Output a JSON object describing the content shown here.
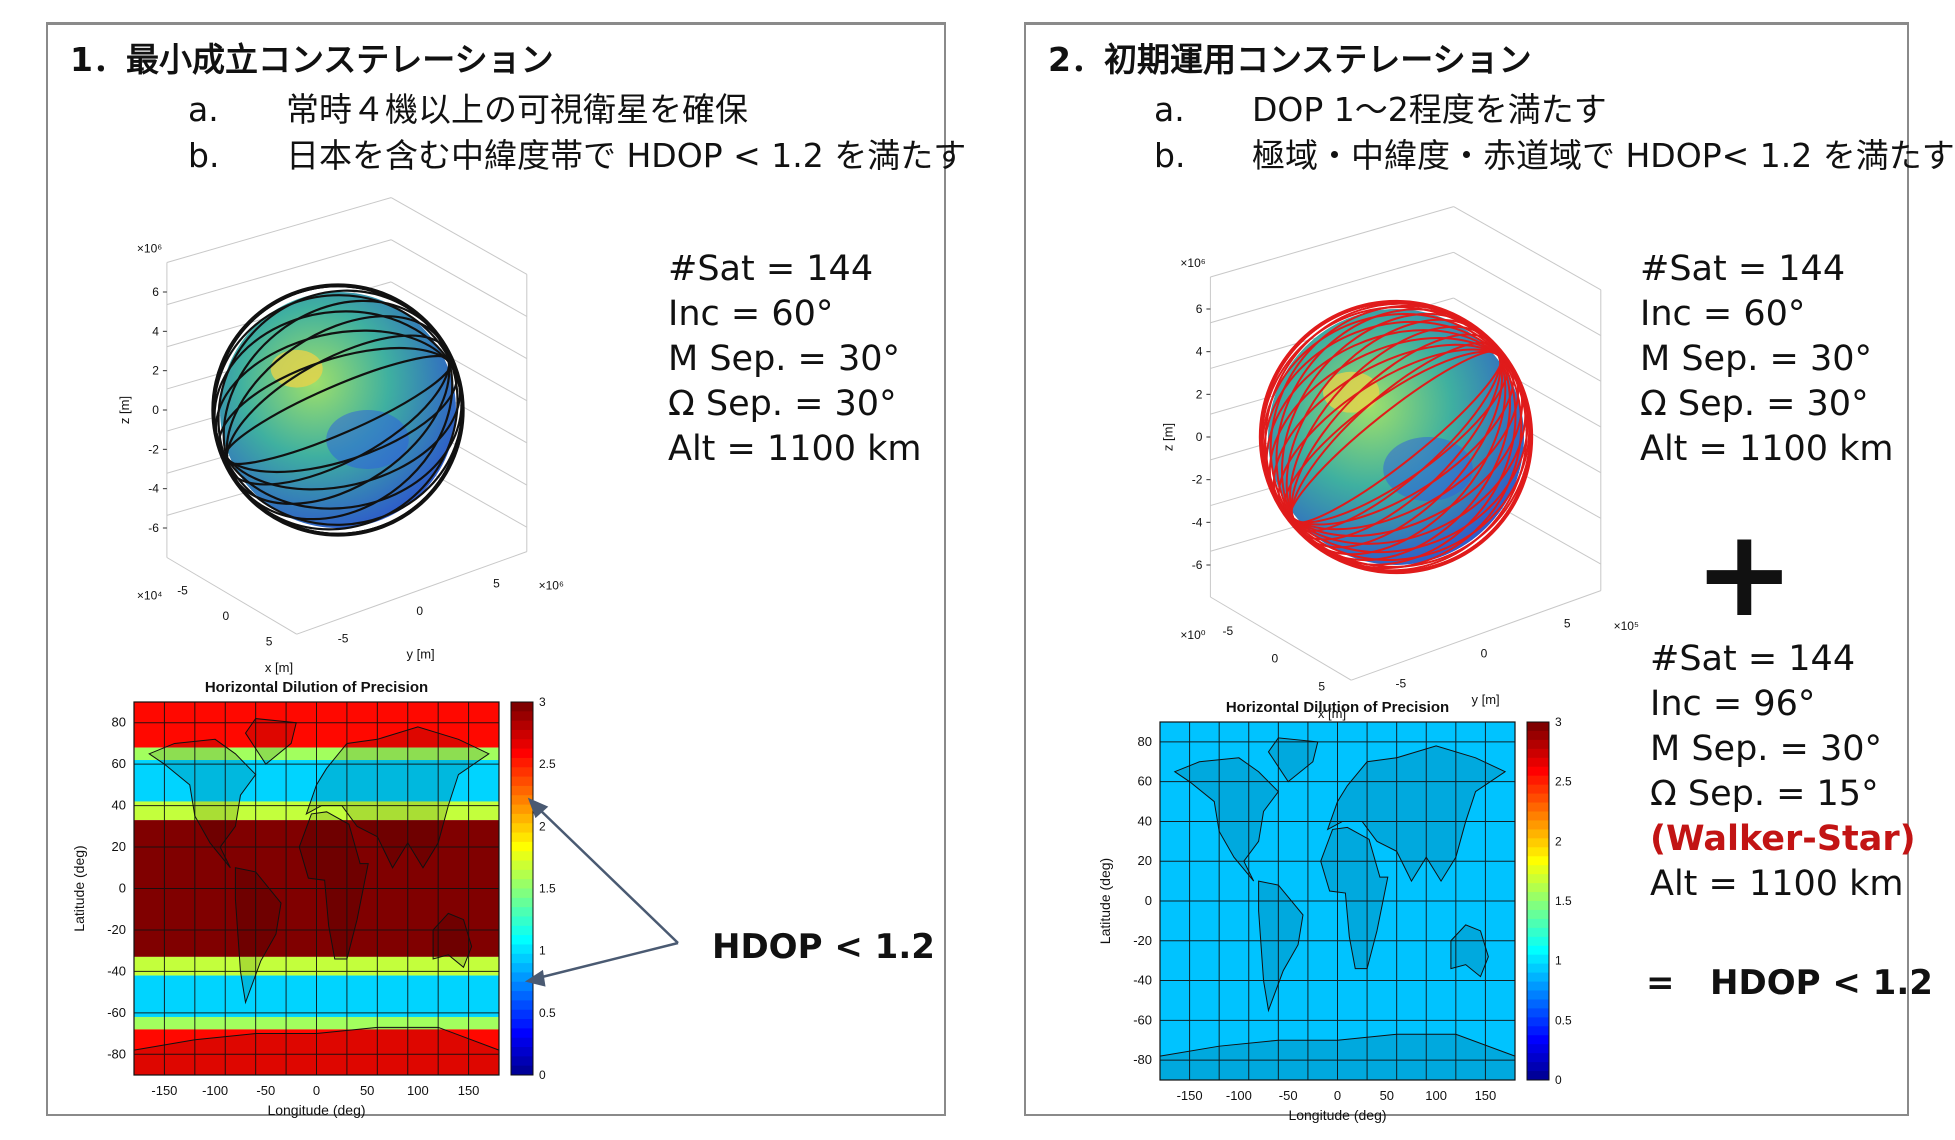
{
  "panel1": {
    "title": "1．最小成立コンステレーション",
    "req_a_label": "a.",
    "req_a_text": "常時４機以上の可視衛星を確保",
    "req_b_label": "b.",
    "req_b_text": "日本を含む中緯度帯で HDOP < 1.2 を満たす",
    "params": [
      "#Sat = 144",
      "Inc = 60°",
      "M Sep. = 30°",
      "Ω Sep. = 30°",
      "Alt = 1100 km"
    ],
    "globe": {
      "z_exp": "×10⁶",
      "x_exp": "×10⁴",
      "y_exp": "×10⁶",
      "z_ticks": [
        "6",
        "4",
        "2",
        "0",
        "-2",
        "-4",
        "-6"
      ],
      "x_ticks": [
        "-5",
        "0",
        "5"
      ],
      "y_ticks": [
        "-5",
        "0",
        "5"
      ],
      "xlabel": "x [m]",
      "ylabel": "y [m]",
      "zlabel": "z [m]",
      "orbit_color": "#111111"
    },
    "map": {
      "title": "Horizontal Dilution of Precision",
      "xlabel": "Longitude (deg)",
      "ylabel": "Latitude (deg)",
      "lat_ticks": [
        "80",
        "60",
        "40",
        "20",
        "0",
        "-20",
        "-40",
        "-60",
        "-80"
      ],
      "lon_ticks": [
        "-150",
        "-100",
        "-50",
        "0",
        "50",
        "100",
        "150"
      ],
      "cbar_ticks": [
        "3",
        "2.5",
        "2",
        "1.5",
        "1",
        "0.5",
        "0"
      ],
      "bands": [
        {
          "lat_from": 90,
          "lat_to": 68,
          "hdop": 2.6
        },
        {
          "lat_from": 68,
          "lat_to": 62,
          "hdop": 1.6
        },
        {
          "lat_from": 62,
          "lat_to": 42,
          "hdop": 1.0
        },
        {
          "lat_from": 42,
          "lat_to": 33,
          "hdop": 1.7
        },
        {
          "lat_from": 33,
          "lat_to": -33,
          "hdop": 3.0
        },
        {
          "lat_from": -33,
          "lat_to": -42,
          "hdop": 1.7
        },
        {
          "lat_from": -42,
          "lat_to": -62,
          "hdop": 1.0
        },
        {
          "lat_from": -62,
          "lat_to": -68,
          "hdop": 1.6
        },
        {
          "lat_from": -68,
          "lat_to": -90,
          "hdop": 2.6
        }
      ]
    },
    "note": "HDOP < 1.2"
  },
  "panel2": {
    "title": "2．初期運用コンステレーション",
    "req_a_label": "a.",
    "req_a_text": "DOP 1～2程度を満たす",
    "req_b_label": "b.",
    "req_b_text": "極域・中緯度・赤道域で HDOP< 1.2 を満たす",
    "params_top": [
      "#Sat = 144",
      "Inc = 60°",
      "M Sep. = 30°",
      "Ω Sep. = 30°",
      "Alt = 1100 km"
    ],
    "plus": "+",
    "params_bottom": [
      "#Sat = 144",
      "Inc = 96°",
      "M Sep. = 30°",
      "Ω Sep. = 15°"
    ],
    "walker": "(Walker-Star)",
    "alt_bottom": "Alt = 1100 km",
    "equals": "=",
    "result": "HDOP < 1.2",
    "globe": {
      "z_exp": "×10⁶",
      "x_exp": "×10⁰",
      "y_exp": "×10⁵",
      "z_ticks": [
        "6",
        "4",
        "2",
        "0",
        "-2",
        "-4",
        "-6"
      ],
      "x_ticks": [
        "-5",
        "0",
        "5"
      ],
      "y_ticks": [
        "-5",
        "0",
        "5"
      ],
      "xlabel": "x [m]",
      "ylabel": "y [m]",
      "zlabel": "z [m]",
      "orbit_color": "#e01b1b"
    },
    "map": {
      "title": "Horizontal Dilution of Precision",
      "xlabel": "Longitude (deg)",
      "ylabel": "Latitude (deg)",
      "lat_ticks": [
        "80",
        "60",
        "40",
        "20",
        "0",
        "-20",
        "-40",
        "-60",
        "-80"
      ],
      "lon_ticks": [
        "-150",
        "-100",
        "-50",
        "0",
        "50",
        "100",
        "150"
      ],
      "cbar_ticks": [
        "3",
        "2.5",
        "2",
        "1.5",
        "1",
        "0.5",
        "0"
      ],
      "bands": [
        {
          "lat_from": 90,
          "lat_to": -90,
          "hdop": 0.95
        }
      ]
    }
  }
}
